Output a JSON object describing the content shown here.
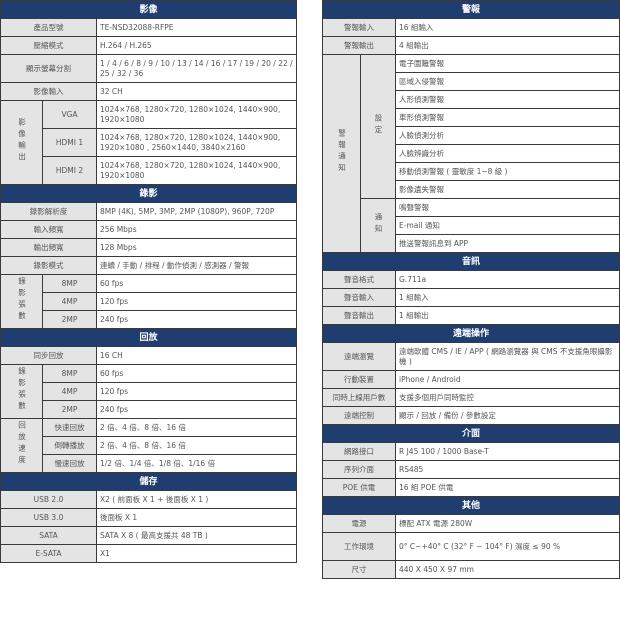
{
  "colors": {
    "header": "#1f3d6e",
    "label": "#e4e4e4",
    "border": "#3a3a3a"
  },
  "left": [
    {
      "title": "影像",
      "rows": [
        {
          "label": "產品型號",
          "value": "TE-NSD32088-RFPE"
        },
        {
          "label": "壓縮模式",
          "value": "H.264 / H.265"
        },
        {
          "label": "顯示螢幕分割",
          "value": "1 / 4 / 6 / 8 / 9 / 10 / 13 / 14 / 16 / 17 / 19 / 20 / 22 / 25 / 32 / 36",
          "tall": true
        },
        {
          "label": "影像輸入",
          "value": "32 CH"
        },
        {
          "group": "影像輸出",
          "items": [
            {
              "label": "VGA",
              "value": "1024×768, 1280×720, 1280×1024, 1440×900, 1920×1080",
              "tall": true
            },
            {
              "label": "HDMI 1",
              "value": "1024×768, 1280×720, 1280×1024, 1440×900, 1920×1080 , 2560×1440, 3840×2160",
              "tall": true
            },
            {
              "label": "HDMI 2",
              "value": "1024×768, 1280×720, 1280×1024, 1440×900, 1920×1080",
              "tall": true
            }
          ]
        }
      ]
    },
    {
      "title": "錄影",
      "rows": [
        {
          "label": "錄影解析度",
          "value": "8MP (4K), 5MP, 3MP, 2MP (1080P), 960P, 720P"
        },
        {
          "label": "輸入頻寬",
          "value": "256 Mbps"
        },
        {
          "label": "輸出頻寬",
          "value": "128 Mbps"
        },
        {
          "label": "錄影模式",
          "value": "連續 / 手動 / 排程 / 動作偵測 / 感測器 / 警報"
        },
        {
          "group": "錄影張數",
          "items": [
            {
              "label": "8MP",
              "value": "60 fps"
            },
            {
              "label": "4MP",
              "value": "120 fps"
            },
            {
              "label": "2MP",
              "value": "240 fps"
            }
          ]
        }
      ]
    },
    {
      "title": "回放",
      "rows": [
        {
          "label": "同步回放",
          "value": "16 CH"
        },
        {
          "group": "錄影張數",
          "items": [
            {
              "label": "8MP",
              "value": "60 fps"
            },
            {
              "label": "4MP",
              "value": "120 fps"
            },
            {
              "label": "2MP",
              "value": "240 fps"
            }
          ]
        },
        {
          "group": "回放速度",
          "items": [
            {
              "label": "快速回放",
              "value": "2 倍、4 倍、8 倍、16 倍"
            },
            {
              "label": "倒轉播放",
              "value": "2 倍、4 倍、8 倍、16 倍"
            },
            {
              "label": "慢速回放",
              "value": "1/2 倍、1/4 倍、1/8 倍、1/16 倍"
            }
          ]
        }
      ]
    },
    {
      "title": "儲存",
      "rows": [
        {
          "label": "USB 2.0",
          "value": "X2 ( 前面板 X 1 + 後面板 X 1 )"
        },
        {
          "label": "USB 3.0",
          "value": "後面板 X 1"
        },
        {
          "label": "SATA",
          "value": "SATA X 8 ( 最高支援共 48 TB )"
        },
        {
          "label": "E-SATA",
          "value": "X1"
        }
      ]
    }
  ],
  "right": [
    {
      "title": "警報",
      "rows": [
        {
          "label": "警報輸入",
          "value": "16 組輸入"
        },
        {
          "label": "警報輸出",
          "value": "4 組輸出"
        },
        {
          "group": "警報通知",
          "subgroups": [
            {
              "label": "設定",
              "values": [
                "電子圍籬警報",
                "區域入侵警報",
                "人形偵測警報",
                "車形偵測警報",
                "人臉偵測分析",
                "人臉辨識分析",
                "移動偵測警報 ( 靈敏度 1~8 級 )",
                "影像遺失警報"
              ]
            },
            {
              "label": "通知",
              "values": [
                "鳴聲警報",
                "E-mail 通知",
                "推送警報訊息到 APP"
              ]
            }
          ]
        }
      ]
    },
    {
      "title": "音訊",
      "rows": [
        {
          "label": "聲音格式",
          "value": "G.711a"
        },
        {
          "label": "聲音輸入",
          "value": "1 組輸入"
        },
        {
          "label": "聲音輸出",
          "value": "1 組輸出"
        }
      ]
    },
    {
      "title": "遠端操作",
      "rows": [
        {
          "label": "遠端瀏覽",
          "value": "遠端軟體 CMS / IE / APP ( 網路瀏覽器 與 CMS 不支援魚眼攝影機 )",
          "tall": true
        },
        {
          "label": "行動裝置",
          "value": "iPhone / Android"
        },
        {
          "label": "同時上線用戶數",
          "value": "支援多個用戶同時監控"
        },
        {
          "label": "遠端控制",
          "value": "顯示 / 回放 / 備份 / 參數設定"
        }
      ]
    },
    {
      "title": "介面",
      "rows": [
        {
          "label": "網路接口",
          "value": "R J45 100 / 1000 Base-T"
        },
        {
          "label": "序列介面",
          "value": "RS485"
        },
        {
          "label": "POE 供電",
          "value": "16 組 POE 供電"
        }
      ]
    },
    {
      "title": "其他",
      "rows": [
        {
          "label": "電源",
          "value": "標配 ATX 電源 280W"
        },
        {
          "label": "工作環境",
          "value": "0° C~+40° C (32° F ~ 104° F) 濕度 ≤ 90 %",
          "tall": true
        },
        {
          "label": "尺寸",
          "value": "440 X 450 X 97 mm"
        }
      ]
    }
  ]
}
